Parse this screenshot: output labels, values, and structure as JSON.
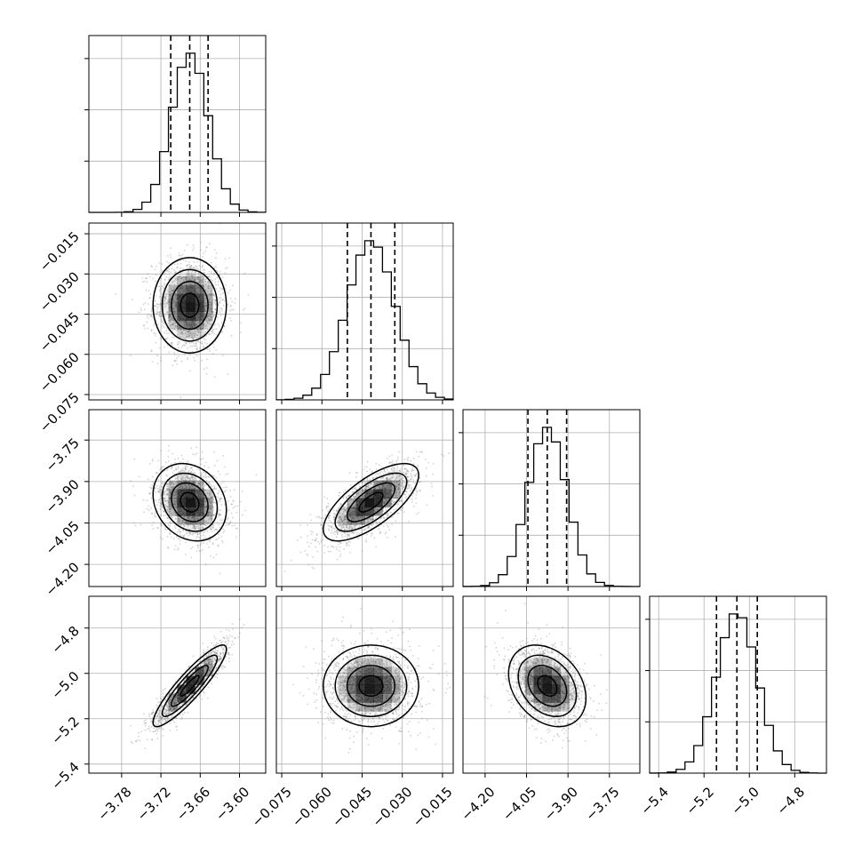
{
  "chart_data": {
    "type": "corner",
    "description_source": "posterior corner plot of 4 parameters with 1D histograms and 2D density contours",
    "parameters": [
      {
        "index": 0,
        "range": [
          -3.83,
          -3.56
        ],
        "ticks": [
          -3.78,
          -3.72,
          -3.66,
          -3.6
        ],
        "tick_labels": [
          "−3.78",
          "−3.72",
          "−3.66",
          "−3.60"
        ],
        "quantiles": [
          -3.705,
          -3.676,
          -3.648
        ],
        "mean": -3.676,
        "sd": 0.028
      },
      {
        "index": 1,
        "range": [
          -0.077,
          -0.011
        ],
        "ticks": [
          -0.075,
          -0.06,
          -0.045,
          -0.03,
          -0.015
        ],
        "tick_labels": [
          "−0.075",
          "−0.060",
          "−0.045",
          "−0.030",
          "−0.015"
        ],
        "quantiles": [
          -0.0505,
          -0.0417,
          -0.0328
        ],
        "mean": -0.0417,
        "sd": 0.0089
      },
      {
        "index": 2,
        "range": [
          -4.28,
          -3.64
        ],
        "ticks": [
          -4.2,
          -4.05,
          -3.9,
          -3.75
        ],
        "tick_labels": [
          "−4.20",
          "−4.05",
          "−3.90",
          "−3.75"
        ],
        "quantiles": [
          -4.045,
          -3.975,
          -3.905
        ],
        "mean": -3.975,
        "sd": 0.07
      },
      {
        "index": 3,
        "range": [
          -5.44,
          -4.66
        ],
        "ticks": [
          -5.4,
          -5.2,
          -5.0,
          -4.8
        ],
        "tick_labels": [
          "−5.4",
          "−5.2",
          "−5.0",
          "−4.8"
        ],
        "quantiles": [
          -5.145,
          -5.055,
          -4.965
        ],
        "mean": -5.055,
        "sd": 0.09
      }
    ],
    "correlations": {
      "1-0": 0.0,
      "2-0": -0.2,
      "2-1": 0.7,
      "3-0": 0.9,
      "3-1": 0.0,
      "3-2": -0.3
    },
    "histogram_bins": 20,
    "sample_points_per_panel": 1500,
    "contour_levels_sigma": [
      0.5,
      1.0,
      1.5,
      2.0
    ],
    "grid": true,
    "colors": {
      "line": "#000000",
      "density": "#000000",
      "grid": "#b0b0b0",
      "points": "#808080"
    },
    "title": "",
    "legend": ""
  }
}
